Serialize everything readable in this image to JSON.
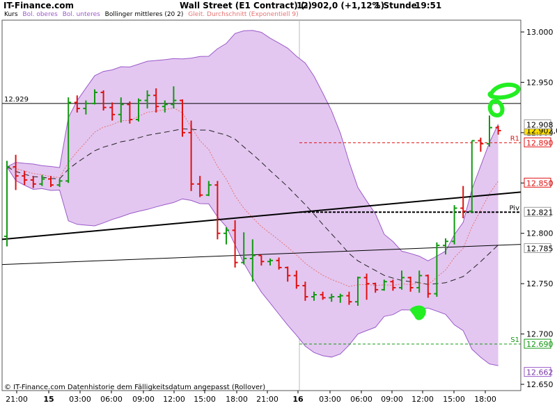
{
  "header": {
    "site": "IT-Finance.com",
    "instrument": "Wall Street (E1 Contract) (-)",
    "price_change": "12.902,0 (+1,12%)",
    "interval": "1 Stunde",
    "time": "19:51"
  },
  "legend": [
    {
      "label": "Kurs",
      "color": "#000000"
    },
    {
      "label": "Bol. oberes",
      "color": "#9b59c9"
    },
    {
      "label": "Bol. unteres",
      "color": "#9b59c9"
    },
    {
      "label": "Bollinger mittleres (20 2)",
      "color": "#000000"
    },
    {
      "label": "Gleit. Durchschnitt (Exponentiell 9)",
      "color": "#e57373"
    }
  ],
  "footer_note": "© IT-Finance.com  Datenhistorie dem Fälligkeitsdatum angepasst (Rollover)",
  "colors": {
    "up": "#119911",
    "down": "#e01010",
    "band_fill": "#e3c7f0",
    "band_line": "#9b59c9",
    "ema": "#e57373",
    "highlight": "#22ee22"
  },
  "chart_data": {
    "type": "ohlc",
    "title": "Wall Street (E1 Contract) (-)",
    "interval": "1 Stunde",
    "ylim": [
      12.64,
      13.012
    ],
    "y_ticks": [
      "12.650",
      "12.700",
      "12.750",
      "12.800",
      "12.850",
      "12.900",
      "12.950",
      "13.000"
    ],
    "x_ticks": [
      "21:00",
      "15",
      "03:00",
      "06:00",
      "09:00",
      "12:00",
      "15:00",
      "18:00",
      "21:00",
      "16",
      "03:00",
      "06:00",
      "09:00",
      "12:00",
      "15:00",
      "18:00"
    ],
    "right_labels": [
      {
        "text": "12.902,0",
        "value": 12.902,
        "style": "last"
      },
      {
        "text": "12.908",
        "value": 12.908,
        "style": "plain"
      },
      {
        "text": "12.890",
        "value": 12.89,
        "style": "red"
      },
      {
        "text": "12.850",
        "value": 12.85,
        "style": "red"
      },
      {
        "text": "12.821",
        "value": 12.821,
        "style": "plain"
      },
      {
        "text": "12.785",
        "value": 12.785,
        "style": "plain"
      },
      {
        "text": "12.690",
        "value": 12.69,
        "style": "green"
      },
      {
        "text": "12.662",
        "value": 12.662,
        "style": "violet"
      }
    ],
    "levels": [
      {
        "name": "R1",
        "value": 12.89,
        "color": "#e01010"
      },
      {
        "name": "Piv",
        "value": 12.821,
        "color": "#000000"
      },
      {
        "name": "S1",
        "value": 12.69,
        "color": "#119911"
      }
    ],
    "reference_line": {
      "text": "12.929",
      "value": 12.929
    },
    "ohlc": [
      {
        "o": 12.797,
        "h": 12.872,
        "l": 12.787,
        "c": 12.866
      },
      {
        "o": 12.866,
        "h": 12.878,
        "l": 12.843,
        "c": 12.857
      },
      {
        "o": 12.857,
        "h": 12.862,
        "l": 12.848,
        "c": 12.853
      },
      {
        "o": 12.853,
        "h": 12.857,
        "l": 12.845,
        "c": 12.849
      },
      {
        "o": 12.849,
        "h": 12.858,
        "l": 12.847,
        "c": 12.854
      },
      {
        "o": 12.854,
        "h": 12.857,
        "l": 12.846,
        "c": 12.848
      },
      {
        "o": 12.848,
        "h": 12.854,
        "l": 12.846,
        "c": 12.852
      },
      {
        "o": 12.852,
        "h": 12.935,
        "l": 12.85,
        "c": 12.93
      },
      {
        "o": 12.93,
        "h": 12.937,
        "l": 12.92,
        "c": 12.924
      },
      {
        "o": 12.924,
        "h": 12.932,
        "l": 12.918,
        "c": 12.929
      },
      {
        "o": 12.929,
        "h": 12.943,
        "l": 12.928,
        "c": 12.94
      },
      {
        "o": 12.94,
        "h": 12.942,
        "l": 12.922,
        "c": 12.925
      },
      {
        "o": 12.925,
        "h": 12.93,
        "l": 12.912,
        "c": 12.918
      },
      {
        "o": 12.918,
        "h": 12.935,
        "l": 12.91,
        "c": 12.928
      },
      {
        "o": 12.928,
        "h": 12.931,
        "l": 12.909,
        "c": 12.913
      },
      {
        "o": 12.913,
        "h": 12.934,
        "l": 12.911,
        "c": 12.932
      },
      {
        "o": 12.932,
        "h": 12.942,
        "l": 12.924,
        "c": 12.937
      },
      {
        "o": 12.937,
        "h": 12.944,
        "l": 12.92,
        "c": 12.926
      },
      {
        "o": 12.926,
        "h": 12.932,
        "l": 12.92,
        "c": 12.928
      },
      {
        "o": 12.928,
        "h": 12.946,
        "l": 12.924,
        "c": 12.932
      },
      {
        "o": 12.932,
        "h": 12.933,
        "l": 12.896,
        "c": 12.9
      },
      {
        "o": 12.9,
        "h": 12.912,
        "l": 12.842,
        "c": 12.849
      },
      {
        "o": 12.849,
        "h": 12.857,
        "l": 12.836,
        "c": 12.838
      },
      {
        "o": 12.838,
        "h": 12.852,
        "l": 12.837,
        "c": 12.848
      },
      {
        "o": 12.848,
        "h": 12.852,
        "l": 12.794,
        "c": 12.8
      },
      {
        "o": 12.8,
        "h": 12.806,
        "l": 12.789,
        "c": 12.803
      },
      {
        "o": 12.803,
        "h": 12.813,
        "l": 12.766,
        "c": 12.771
      },
      {
        "o": 12.771,
        "h": 12.801,
        "l": 12.769,
        "c": 12.775
      },
      {
        "o": 12.775,
        "h": 12.794,
        "l": 12.752,
        "c": 12.778
      },
      {
        "o": 12.778,
        "h": 12.778,
        "l": 12.768,
        "c": 12.772
      },
      {
        "o": 12.772,
        "h": 12.775,
        "l": 12.768,
        "c": 12.773
      },
      {
        "o": 12.773,
        "h": 12.776,
        "l": 12.764,
        "c": 12.766
      },
      {
        "o": 12.766,
        "h": 12.767,
        "l": 12.752,
        "c": 12.758
      },
      {
        "o": 12.758,
        "h": 12.763,
        "l": 12.745,
        "c": 12.748
      },
      {
        "o": 12.748,
        "h": 12.752,
        "l": 12.733,
        "c": 12.737
      },
      {
        "o": 12.737,
        "h": 12.742,
        "l": 12.733,
        "c": 12.739
      },
      {
        "o": 12.739,
        "h": 12.742,
        "l": 12.734,
        "c": 12.736
      },
      {
        "o": 12.736,
        "h": 12.74,
        "l": 12.732,
        "c": 12.737
      },
      {
        "o": 12.737,
        "h": 12.74,
        "l": 12.731,
        "c": 12.738
      },
      {
        "o": 12.738,
        "h": 12.742,
        "l": 12.729,
        "c": 12.732
      },
      {
        "o": 12.732,
        "h": 12.757,
        "l": 12.728,
        "c": 12.756
      },
      {
        "o": 12.756,
        "h": 12.76,
        "l": 12.734,
        "c": 12.75
      },
      {
        "o": 12.75,
        "h": 12.751,
        "l": 12.741,
        "c": 12.744
      },
      {
        "o": 12.744,
        "h": 12.754,
        "l": 12.743,
        "c": 12.752
      },
      {
        "o": 12.752,
        "h": 12.754,
        "l": 12.743,
        "c": 12.746
      },
      {
        "o": 12.746,
        "h": 12.763,
        "l": 12.744,
        "c": 12.756
      },
      {
        "o": 12.756,
        "h": 12.757,
        "l": 12.742,
        "c": 12.746
      },
      {
        "o": 12.746,
        "h": 12.763,
        "l": 12.741,
        "c": 12.758
      },
      {
        "o": 12.758,
        "h": 12.759,
        "l": 12.736,
        "c": 12.74
      },
      {
        "o": 12.74,
        "h": 12.791,
        "l": 12.737,
        "c": 12.788
      },
      {
        "o": 12.788,
        "h": 12.795,
        "l": 12.779,
        "c": 12.792
      },
      {
        "o": 12.792,
        "h": 12.828,
        "l": 12.789,
        "c": 12.825
      },
      {
        "o": 12.825,
        "h": 12.847,
        "l": 12.815,
        "c": 12.822
      },
      {
        "o": 12.822,
        "h": 12.892,
        "l": 12.82,
        "c": 12.892
      },
      {
        "o": 12.892,
        "h": 12.895,
        "l": 12.881,
        "c": 12.889
      },
      {
        "o": 12.889,
        "h": 12.917,
        "l": 12.886,
        "c": 12.905
      },
      {
        "o": 12.905,
        "h": 12.907,
        "l": 12.898,
        "c": 12.902
      }
    ]
  }
}
